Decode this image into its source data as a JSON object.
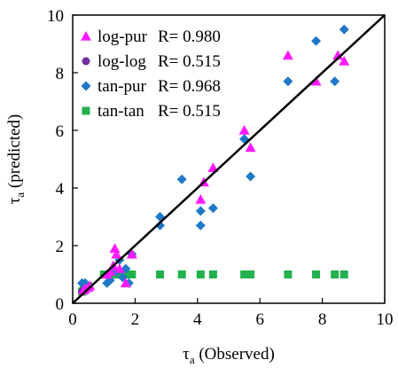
{
  "chart_data": {
    "type": "scatter",
    "title": "",
    "xlabel": "τ",
    "xlabel_sub": "a",
    "xlabel_rest": " (Observed)",
    "ylabel": "τ",
    "ylabel_sub": "a",
    "ylabel_rest": " (predicted)",
    "xlim": [
      0,
      10
    ],
    "ylim": [
      0,
      10
    ],
    "xticks": [
      "0",
      "2",
      "4",
      "6",
      "8",
      "10"
    ],
    "yticks": [
      "0",
      "2",
      "4",
      "6",
      "8",
      "10"
    ],
    "grid": false,
    "legend_position": "top-left",
    "reference_line": "y = x",
    "series": [
      {
        "name": "log-pur",
        "r_label": "R= 0.980",
        "marker": "triangle",
        "color": "#ff1aff",
        "points": [
          [
            0.35,
            0.45
          ],
          [
            0.4,
            0.5
          ],
          [
            0.5,
            0.55
          ],
          [
            0.55,
            0.6
          ],
          [
            1.1,
            1.0
          ],
          [
            1.2,
            1.1
          ],
          [
            1.3,
            1.3
          ],
          [
            1.35,
            1.9
          ],
          [
            1.4,
            1.7
          ],
          [
            1.5,
            1.2
          ],
          [
            1.7,
            0.7
          ],
          [
            1.9,
            1.7
          ],
          [
            4.1,
            3.6
          ],
          [
            4.2,
            4.2
          ],
          [
            4.5,
            4.7
          ],
          [
            5.5,
            6.0
          ],
          [
            5.7,
            5.4
          ],
          [
            6.9,
            8.6
          ],
          [
            7.8,
            7.7
          ],
          [
            8.5,
            8.6
          ],
          [
            8.7,
            8.4
          ]
        ]
      },
      {
        "name": "log-log",
        "r_label": "R= 0.515",
        "marker": "circle",
        "color": "#7030a0",
        "points": [
          [
            0.3,
            0.4
          ],
          [
            0.35,
            0.45
          ],
          [
            0.4,
            0.5
          ],
          [
            0.45,
            0.55
          ],
          [
            0.5,
            0.6
          ]
        ]
      },
      {
        "name": "tan-pur",
        "r_label": "R= 0.968",
        "marker": "diamond",
        "color": "#1f78c8",
        "points": [
          [
            0.3,
            0.7
          ],
          [
            0.4,
            0.7
          ],
          [
            0.5,
            0.6
          ],
          [
            1.1,
            0.7
          ],
          [
            1.2,
            0.8
          ],
          [
            1.3,
            1.2
          ],
          [
            1.4,
            1.1
          ],
          [
            1.5,
            1.5
          ],
          [
            1.6,
            0.9
          ],
          [
            1.7,
            1.2
          ],
          [
            1.8,
            0.7
          ],
          [
            1.9,
            1.7
          ],
          [
            2.8,
            2.7
          ],
          [
            2.8,
            3.0
          ],
          [
            3.5,
            4.3
          ],
          [
            4.1,
            3.2
          ],
          [
            4.1,
            2.7
          ],
          [
            4.5,
            3.3
          ],
          [
            5.5,
            5.7
          ],
          [
            5.7,
            4.4
          ],
          [
            6.9,
            7.7
          ],
          [
            7.8,
            9.1
          ],
          [
            8.4,
            7.7
          ],
          [
            8.7,
            9.5
          ]
        ]
      },
      {
        "name": "tan-tan",
        "r_label": "R= 0.515",
        "marker": "square",
        "color": "#22b14c",
        "points": [
          [
            0.3,
            0.4
          ],
          [
            0.35,
            0.5
          ],
          [
            0.4,
            0.5
          ],
          [
            0.5,
            0.6
          ],
          [
            1.0,
            1.0
          ],
          [
            1.2,
            1.0
          ],
          [
            1.4,
            1.0
          ],
          [
            1.5,
            1.0
          ],
          [
            1.7,
            1.0
          ],
          [
            1.9,
            1.0
          ],
          [
            2.8,
            1.0
          ],
          [
            3.5,
            1.0
          ],
          [
            4.1,
            1.0
          ],
          [
            4.5,
            1.0
          ],
          [
            5.5,
            1.0
          ],
          [
            5.7,
            1.0
          ],
          [
            6.9,
            1.0
          ],
          [
            7.8,
            1.0
          ],
          [
            8.4,
            1.0
          ],
          [
            8.7,
            1.0
          ]
        ]
      }
    ]
  }
}
